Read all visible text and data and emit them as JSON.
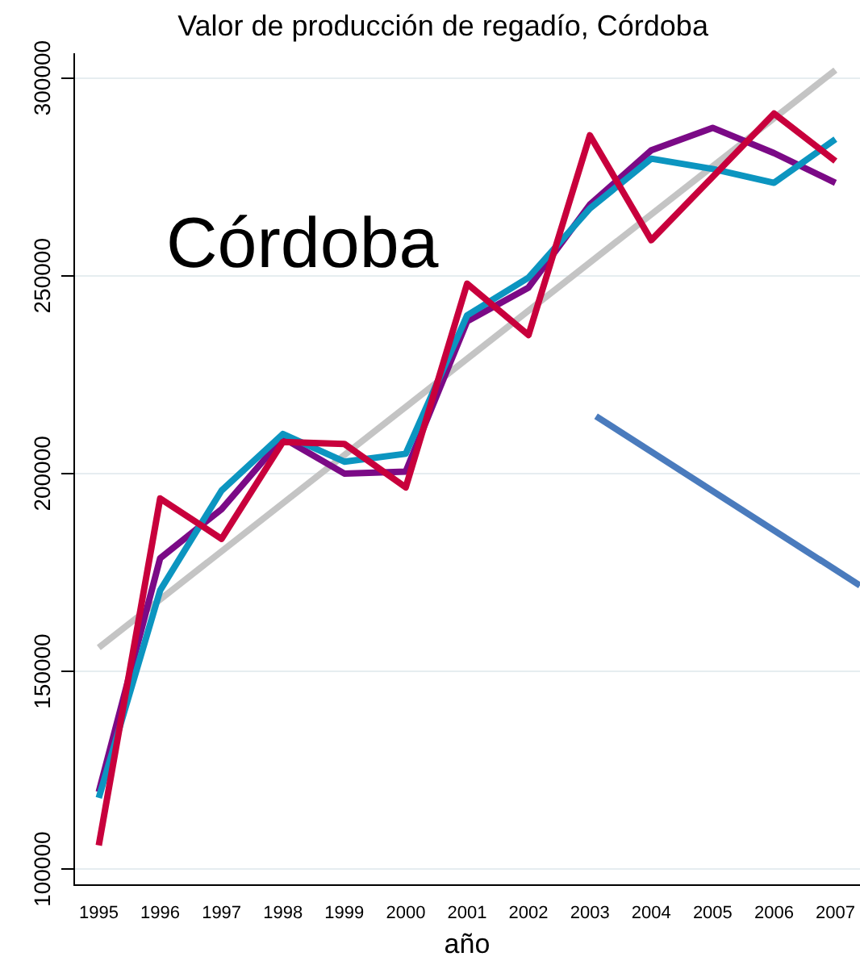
{
  "chart_data": {
    "type": "line",
    "title": "Valor de producción de regadío, Córdoba",
    "xlabel": "año",
    "x": [
      1995,
      1996,
      1997,
      1998,
      1999,
      2000,
      2001,
      2002,
      2003,
      2004,
      2005,
      2006,
      2007
    ],
    "series": [
      {
        "color": "#c8003c",
        "values": [
          106000,
          193700,
          183500,
          208000,
          207500,
          196500,
          248000,
          235000,
          285500,
          259000,
          275000,
          291000,
          279000
        ]
      },
      {
        "color": "#0c95c0",
        "values": [
          118000,
          170500,
          195700,
          210000,
          203000,
          205000,
          240000,
          249500,
          267000,
          279600,
          277000,
          273500,
          284500
        ]
      },
      {
        "color": "#7b0a86",
        "values": [
          119500,
          178600,
          191000,
          209000,
          200000,
          200500,
          238500,
          247000,
          268000,
          281700,
          287400,
          281000,
          273500
        ]
      },
      {
        "color": "#c4c4c4",
        "x": [
          1995,
          2007
        ],
        "values": [
          156000,
          302000
        ]
      },
      {
        "color": "#4a7bbd",
        "x": [
          2003.1,
          2007.4
        ],
        "values": [
          214500,
          171700
        ]
      }
    ],
    "xlim": [
      1994.6,
      2007.4
    ],
    "xticks": [
      1995,
      1996,
      1997,
      1998,
      1999,
      2000,
      2001,
      2002,
      2003,
      2004,
      2005,
      2006,
      2007
    ],
    "ylim": [
      96000,
      306000
    ],
    "yticks": [
      100000,
      150000,
      200000,
      250000,
      300000
    ],
    "grid": "y",
    "legend": false,
    "marker": "none",
    "line_style": "solid",
    "annotations": [
      "Córdoba"
    ]
  }
}
